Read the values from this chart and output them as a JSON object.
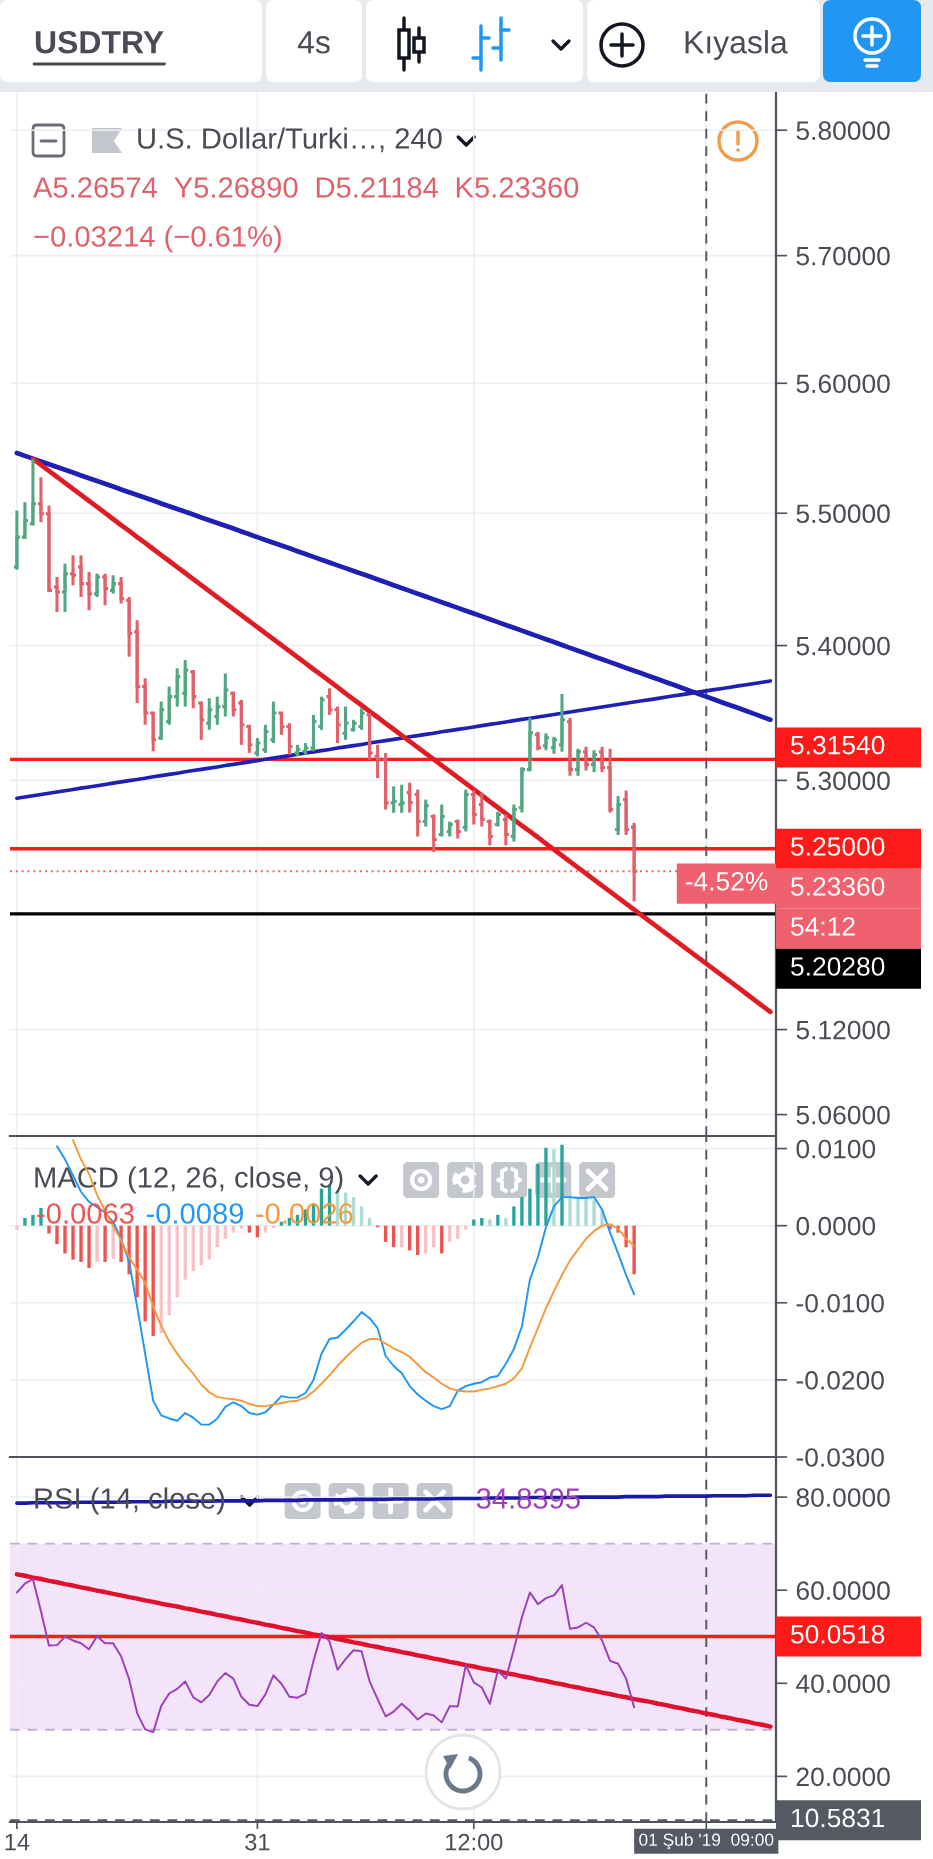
{
  "chart_data": [
    {
      "type": "candlestick",
      "title": "U.S. Dollar/Turki…, 240",
      "categories": [
        "14",
        null,
        null,
        null,
        null,
        null,
        null,
        null,
        null,
        null,
        null,
        null,
        null,
        null,
        null,
        null,
        null,
        null,
        null,
        null,
        null,
        null,
        null,
        null,
        null,
        null,
        null,
        null,
        null,
        null,
        "31",
        null,
        null,
        null,
        null,
        null,
        null,
        null,
        null,
        null,
        null,
        null,
        null,
        null,
        null,
        null,
        null,
        null,
        null,
        null,
        null,
        null,
        null,
        null,
        null,
        null,
        null,
        "12:00",
        null,
        null,
        null,
        null,
        null,
        null,
        null,
        null,
        null,
        null,
        null,
        null,
        null,
        null,
        null,
        null,
        null,
        null,
        null,
        null,
        null,
        null,
        null,
        null,
        null,
        null,
        null,
        null,
        "01 Şub '19  09:00",
        null,
        null,
        null,
        null,
        null,
        null,
        null,
        null
      ],
      "ohlc": [
        [
          5.4591,
          5.5021,
          5.4571,
          5.4818
        ],
        [
          5.4818,
          5.5084,
          5.4806,
          5.4945
        ],
        [
          5.492,
          5.5416,
          5.4907,
          5.5072
        ],
        [
          5.5072,
          5.5275,
          5.4932,
          5.4996
        ],
        [
          5.4996,
          5.5059,
          5.4402,
          5.4415
        ],
        [
          5.444,
          5.4516,
          5.4252,
          5.4402
        ],
        [
          5.4402,
          5.4617,
          5.4252,
          5.4541
        ],
        [
          5.4541,
          5.468,
          5.4453,
          5.4529
        ],
        [
          5.4591,
          5.468,
          5.4365,
          5.4466
        ],
        [
          5.4466,
          5.4554,
          5.4265,
          5.439
        ],
        [
          5.439,
          5.4541,
          5.4365,
          5.4516
        ],
        [
          5.4516,
          5.4541,
          5.4303,
          5.4428
        ],
        [
          5.4415,
          5.4529,
          5.439,
          5.4466
        ],
        [
          5.4466,
          5.4516,
          5.4315,
          5.4353
        ],
        [
          5.434,
          5.4365,
          5.3917,
          5.409
        ],
        [
          5.4103,
          5.419,
          5.3571,
          5.3694
        ],
        [
          5.3694,
          5.3755,
          5.341,
          5.3497
        ],
        [
          5.3497,
          5.3497,
          5.3214,
          5.3299
        ],
        [
          5.3312,
          5.3582,
          5.3299,
          5.3521
        ],
        [
          5.3435,
          5.3694,
          5.341,
          5.3619
        ],
        [
          5.3619,
          5.383,
          5.3545,
          5.3768
        ],
        [
          5.3644,
          5.3892,
          5.3545,
          5.3817
        ],
        [
          5.3805,
          5.3817,
          5.3533,
          5.3619
        ],
        [
          5.3571,
          5.3582,
          5.3299,
          5.3447
        ],
        [
          5.3422,
          5.3607,
          5.3373,
          5.3521
        ],
        [
          5.3472,
          5.3619,
          5.341,
          5.3545
        ],
        [
          5.3545,
          5.3792,
          5.3472,
          5.3669
        ],
        [
          5.3644,
          5.3656,
          5.3472,
          5.3521
        ],
        [
          5.3571,
          5.3595,
          5.3262,
          5.341
        ],
        [
          5.3398,
          5.341,
          5.3202,
          5.3262
        ],
        [
          5.3202,
          5.3312,
          5.3177,
          5.3275
        ],
        [
          5.3226,
          5.341,
          5.3202,
          5.3361
        ],
        [
          5.3299,
          5.3582,
          5.3275,
          5.3497
        ],
        [
          5.3497,
          5.3497,
          5.3336,
          5.3398
        ],
        [
          5.3398,
          5.3422,
          5.3189,
          5.325
        ],
        [
          5.3202,
          5.3262,
          5.3177,
          5.3226
        ],
        [
          5.3214,
          5.3275,
          5.3189,
          5.3238
        ],
        [
          5.3238,
          5.3484,
          5.3214,
          5.3435
        ],
        [
          5.3398,
          5.3619,
          5.3373,
          5.3595
        ],
        [
          5.3619,
          5.3681,
          5.3484,
          5.3521
        ],
        [
          5.3521,
          5.3545,
          5.3275,
          5.341
        ],
        [
          5.3348,
          5.3545,
          5.3299,
          5.3422
        ],
        [
          5.3373,
          5.3447,
          5.3361,
          5.3422
        ],
        [
          5.3398,
          5.3533,
          5.3373,
          5.3497
        ],
        [
          5.3484,
          5.3497,
          5.3152,
          5.3202
        ],
        [
          5.3177,
          5.3262,
          5.3017,
          5.3152
        ],
        [
          5.3152,
          5.3202,
          5.2786,
          5.2835
        ],
        [
          5.2835,
          5.2956,
          5.2762,
          5.2847
        ],
        [
          5.2823,
          5.2968,
          5.2762,
          5.2835
        ],
        [
          5.291,
          5.2983,
          5.2764,
          5.2837
        ],
        [
          5.2896,
          5.2932,
          5.2589,
          5.2698
        ],
        [
          5.2698,
          5.2859,
          5.2662,
          5.2815
        ],
        [
          5.2735,
          5.275,
          5.2476,
          5.2568
        ],
        [
          5.2604,
          5.2823,
          5.2589,
          5.2735
        ],
        [
          5.2626,
          5.2698,
          5.2589,
          5.2677
        ],
        [
          5.2698,
          5.2713,
          5.2575,
          5.2626
        ],
        [
          5.2655,
          5.2932,
          5.2626,
          5.2896
        ],
        [
          5.2896,
          5.2925,
          5.2677,
          5.275
        ],
        [
          5.2823,
          5.291,
          5.2662,
          5.2713
        ],
        [
          5.2698,
          5.2713,
          5.2524,
          5.2589
        ],
        [
          5.2677,
          5.2771,
          5.2662,
          5.275
        ],
        [
          5.2713,
          5.275,
          5.2524,
          5.2604
        ],
        [
          5.2589,
          5.2823,
          5.2553,
          5.2786
        ],
        [
          5.2801,
          5.3097,
          5.2764,
          5.3079
        ],
        [
          5.3079,
          5.3462,
          5.3072,
          5.3351
        ],
        [
          5.3336,
          5.3358,
          5.3222,
          5.324
        ],
        [
          5.3255,
          5.3347,
          5.3222,
          5.3314
        ],
        [
          5.324,
          5.3321,
          5.3196,
          5.3299
        ],
        [
          5.3262,
          5.3639,
          5.3211,
          5.3447
        ],
        [
          5.3432,
          5.3462,
          5.3034,
          5.3079
        ],
        [
          5.3079,
          5.3233,
          5.3034,
          5.3211
        ],
        [
          5.3211,
          5.3248,
          5.3072,
          5.3116
        ],
        [
          5.3116,
          5.3222,
          5.306,
          5.3189
        ],
        [
          5.3211,
          5.3248,
          5.306,
          5.3094
        ],
        [
          5.3094,
          5.3233,
          5.2764,
          5.2786
        ],
        [
          5.264,
          5.2885,
          5.26,
          5.2823
        ],
        [
          5.2859,
          5.2925,
          5.26,
          5.264
        ],
        [
          5.26574,
          5.2689,
          5.21184,
          5.2336
        ],
        null,
        null,
        null,
        null,
        null,
        null,
        null,
        null,
        null,
        null,
        null,
        null,
        null,
        null,
        null,
        null,
        null
      ],
      "colors": [
        "#52a681",
        "#52a681",
        "#52a681",
        "#e0606c",
        "#e0606c",
        "#e0606c",
        "#52a681",
        "#e0606c",
        "#e0606c",
        "#e0606c",
        "#52a681",
        "#e0606c",
        "#52a681",
        "#e0606c",
        "#e0606c",
        "#e0606c",
        "#e0606c",
        "#e0606c",
        "#52a681",
        "#52a681",
        "#52a681",
        "#52a681",
        "#e0606c",
        "#e0606c",
        "#52a681",
        "#52a681",
        "#52a681",
        "#e0606c",
        "#e0606c",
        "#e0606c",
        "#52a681",
        "#52a681",
        "#52a681",
        "#e0606c",
        "#e0606c",
        "#52a681",
        "#52a681",
        "#52a681",
        "#52a681",
        "#e0606c",
        "#e0606c",
        "#52a681",
        "#52a681",
        "#52a681",
        "#e0606c",
        "#e0606c",
        "#e0606c",
        "#52a681",
        "#52a681",
        "#e0606c",
        "#e0606c",
        "#52a681",
        "#e0606c",
        "#52a681",
        "#52a681",
        "#e0606c",
        "#52a681",
        "#e0606c",
        "#e0606c",
        "#e0606c",
        "#52a681",
        "#e0606c",
        "#52a681",
        "#52a681",
        "#52a681",
        "#e0606c",
        "#52a681",
        "#52a681",
        "#52a681",
        "#e0606c",
        "#52a681",
        "#e0606c",
        "#52a681",
        "#e0606c",
        "#e0606c",
        "#52a681",
        "#e0606c",
        "#e0606c",
        null,
        null,
        null,
        null,
        null,
        null,
        null,
        null,
        null,
        null,
        null,
        null,
        null,
        null,
        null,
        null,
        null
      ],
      "series": [
        {
          "type": "line",
          "color": "#1f1fb4",
          "values": [
            5.5461,
            5.5439,
            5.5418,
            5.5396,
            5.5375,
            5.5354,
            5.5332,
            5.5311,
            5.5289,
            5.5268,
            5.5247,
            5.5225,
            5.5204,
            5.5182,
            5.5161,
            5.5139,
            5.5118,
            5.5097,
            5.5075,
            5.5054,
            5.5032,
            5.5011,
            5.499,
            5.4968,
            5.4947,
            5.4925,
            5.4904,
            5.4883,
            5.4861,
            5.484,
            5.4818,
            5.4797,
            5.4775,
            5.4754,
            5.4733,
            5.4711,
            5.469,
            5.4668,
            5.4647,
            5.4626,
            5.4604,
            5.4583,
            5.4561,
            5.454,
            5.4519,
            5.4497,
            5.4476,
            5.4454,
            5.4433,
            5.4411,
            5.439,
            5.4369,
            5.4347,
            5.4326,
            5.4304,
            5.4283,
            5.4262,
            5.424,
            5.4219,
            5.4197,
            5.4176,
            5.4155,
            5.4133,
            5.4112,
            5.409,
            5.4069,
            5.4047,
            5.4026,
            5.4005,
            5.3983,
            5.3962,
            5.394,
            5.3919,
            5.3898,
            5.3876,
            5.3855,
            5.3833,
            5.3812,
            5.3791,
            5.3769,
            5.3748,
            5.3726,
            5.3705,
            5.3683,
            5.3662,
            5.3641,
            5.3619,
            5.3598,
            5.3576,
            5.3555,
            5.3534,
            5.3512,
            5.3491,
            5.3469,
            5.3448
          ]
        },
        {
          "type": "line",
          "color": "#1f1fb4",
          "values": [
            5.2869,
            5.2878,
            5.2887,
            5.2897,
            5.2906,
            5.2915,
            5.2924,
            5.2933,
            5.2943,
            5.2952,
            5.2961,
            5.297,
            5.298,
            5.2989,
            5.2998,
            5.3007,
            5.3016,
            5.3026,
            5.3035,
            5.3044,
            5.3053,
            5.3063,
            5.3072,
            5.3081,
            5.309,
            5.3099,
            5.3109,
            5.3118,
            5.3127,
            5.3136,
            5.3145,
            5.3155,
            5.3164,
            5.3173,
            5.3182,
            5.3192,
            5.3201,
            5.321,
            5.3219,
            5.3228,
            5.3238,
            5.3247,
            5.3256,
            5.3265,
            5.3275,
            5.3284,
            5.3293,
            5.3302,
            5.3311,
            5.3321,
            5.333,
            5.3339,
            5.3348,
            5.3358,
            5.3367,
            5.3376,
            5.3385,
            5.3394,
            5.3404,
            5.3413,
            5.3422,
            5.3431,
            5.3441,
            5.345,
            5.3459,
            5.3468,
            5.3477,
            5.3487,
            5.3496,
            5.3505,
            5.3514,
            5.3523,
            5.3533,
            5.3542,
            5.3551,
            5.356,
            5.357,
            5.3579,
            5.3588,
            5.3597,
            5.3606,
            5.3616,
            5.3625,
            5.3634,
            5.3643,
            5.3653,
            5.3662,
            5.3671,
            5.368,
            5.3689,
            5.3699,
            5.3708,
            5.3717,
            5.3726,
            5.3736
          ]
        },
        {
          "type": "line",
          "color": "#e01b24",
          "values": [
            null,
            null,
            5.5416,
            5.537,
            5.5324,
            5.5278,
            5.5232,
            5.5186,
            5.514,
            5.5094,
            5.5048,
            5.5002,
            5.4956,
            5.491,
            5.4865,
            5.4819,
            5.4774,
            5.4728,
            5.4682,
            5.4637,
            5.4591,
            5.4546,
            5.45,
            5.4455,
            5.441,
            5.4364,
            5.4319,
            5.4274,
            5.4229,
            5.4183,
            5.4138,
            5.4093,
            5.4048,
            5.4003,
            5.3958,
            5.3913,
            5.3868,
            5.3823,
            5.3779,
            5.3734,
            5.3689,
            5.3644,
            5.3599,
            5.3555,
            5.351,
            5.3466,
            5.3421,
            5.3377,
            5.3332,
            5.3288,
            5.3243,
            5.3199,
            5.3154,
            5.311,
            5.3066,
            5.3022,
            5.2978,
            5.2934,
            5.289,
            5.2845,
            5.2801,
            5.2757,
            5.2713,
            5.2669,
            5.2626,
            5.2582,
            5.2538,
            5.2494,
            5.2451,
            5.2407,
            5.2363,
            5.2319,
            5.2276,
            5.2232,
            5.2189,
            5.2146,
            5.2102,
            5.2059,
            5.2015,
            5.1972,
            5.1929,
            5.1885,
            5.1842,
            5.1799,
            5.1756,
            5.1713,
            5.167,
            5.1627,
            5.1584,
            5.1541,
            5.1498,
            5.1455,
            5.1412,
            5.1369,
            5.1326
          ]
        }
      ],
      "ylim": [
        5.045,
        5.83
      ],
      "log": true,
      "yticks": [
        {
          "value": 5.8,
          "label": "5.80000"
        },
        {
          "value": 5.7,
          "label": "5.70000"
        },
        {
          "value": 5.6,
          "label": "5.60000"
        },
        {
          "value": 5.5,
          "label": "5.50000"
        },
        {
          "value": 5.4,
          "label": "5.40000"
        },
        {
          "value": 5.3,
          "label": "5.30000"
        },
        {
          "value": 5.12,
          "label": "5.12000"
        },
        {
          "value": 5.06,
          "label": "5.06000"
        }
      ],
      "grid": true,
      "tick_labels": "y",
      "ref_lines": [
        {
          "axis": "y",
          "value": 5.3154,
          "label": "5.31540",
          "color": "#ff1a1a"
        },
        {
          "axis": "y",
          "value": 5.25,
          "label": "5.25000",
          "color": "#ff1a1a"
        },
        {
          "axis": "y",
          "value": 5.2336,
          "label": "5.23360",
          "color": "#f0616f",
          "line_style": "dotted"
        },
        {
          "axis": "y",
          "value": 5.2028,
          "label": "5.20280",
          "color": "#000000"
        },
        {
          "axis": "x",
          "value": "01 Şub '19  09:00",
          "color": "#555963",
          "line_style": "dashed"
        }
      ],
      "annotations": [
        "USDTRY",
        "4s",
        "Kıyasla",
        "A5.26574",
        "Y5.26890",
        "D5.21184",
        "K5.23360",
        "−0.03214 (−0.61%)",
        {
          "text": "-4.52%",
          "y": 5.2336
        },
        "54:12"
      ]
    },
    {
      "type": "line",
      "title": "MACD (12, 26, close, 9)",
      "categories": [
        "14",
        null,
        null,
        null,
        null,
        null,
        null,
        null,
        null,
        null,
        null,
        null,
        null,
        null,
        null,
        null,
        null,
        null,
        null,
        null,
        null,
        null,
        null,
        null,
        null,
        null,
        null,
        null,
        null,
        null,
        "31",
        null,
        null,
        null,
        null,
        null,
        null,
        null,
        null,
        null,
        null,
        null,
        null,
        null,
        null,
        null,
        null,
        null,
        null,
        null,
        null,
        null,
        null,
        null,
        null,
        null,
        null,
        "12:00",
        null,
        null,
        null,
        null,
        null,
        null,
        null,
        null,
        null,
        null,
        null,
        null,
        null,
        null,
        null,
        null,
        null,
        null,
        null,
        null,
        null,
        null,
        null,
        null,
        null,
        null,
        null,
        null,
        "01 Şub '19  09:00",
        null,
        null,
        null,
        null,
        null,
        null,
        null,
        null
      ],
      "series": [
        {
          "type": "bar",
          "values": [
            -0.0005,
            0.001,
            0.0014,
            0.0023,
            -0.001,
            -0.0024,
            -0.0036,
            -0.0044,
            -0.0047,
            -0.0055,
            -0.0047,
            -0.0047,
            -0.0043,
            -0.0047,
            -0.0063,
            -0.0093,
            -0.0124,
            -0.0143,
            -0.0139,
            -0.0116,
            -0.0093,
            -0.007,
            -0.0059,
            -0.0051,
            -0.0044,
            -0.0028,
            -0.0017,
            -0.0009,
            -0.0004,
            -0.0009,
            -0.0015,
            -0.0009,
            -0.0003,
            0.0005,
            0.001,
            0.0014,
            0.0021,
            0.0029,
            0.0048,
            0.0053,
            0.0046,
            0.0043,
            0.0037,
            0.0025,
            0.001,
            -0.0002,
            -0.0021,
            -0.0028,
            -0.0028,
            -0.0032,
            -0.0038,
            -0.0036,
            -0.0028,
            -0.0036,
            -0.0021,
            -0.0017,
            -0.0005,
            0.0008,
            0.001,
            0.0008,
            0.0014,
            0.001,
            0.0025,
            0.0037,
            0.0048,
            0.008,
            0.0101,
            0.0099,
            0.0105,
            0.0044,
            0.0038,
            0.0037,
            0.0033,
            0.0021,
            -0.0005,
            -0.0009,
            -0.0028,
            -0.0063,
            null,
            null,
            null,
            null,
            null,
            null,
            null,
            null,
            null,
            null,
            null,
            null,
            null,
            null,
            null,
            null,
            null
          ],
          "colors": [
            "#f9c0c6",
            "#26a69a",
            "#26a69a",
            "#26a69a",
            "#ef5350",
            "#ef5350",
            "#ef5350",
            "#ef5350",
            "#ef5350",
            "#ef5350",
            "#f9c0c6",
            "#ef5350",
            "#f9c0c6",
            "#ef5350",
            "#ef5350",
            "#ef5350",
            "#ef5350",
            "#ef5350",
            "#f9c0c6",
            "#f9c0c6",
            "#f9c0c6",
            "#f9c0c6",
            "#f9c0c6",
            "#f9c0c6",
            "#f9c0c6",
            "#f9c0c6",
            "#f9c0c6",
            "#f9c0c6",
            "#f9c0c6",
            "#ef5350",
            "#ef5350",
            "#f9c0c6",
            "#f9c0c6",
            "#26a69a",
            "#26a69a",
            "#26a69a",
            "#26a69a",
            "#26a69a",
            "#26a69a",
            "#26a69a",
            "#a8dcd4",
            "#a8dcd4",
            "#a8dcd4",
            "#a8dcd4",
            "#a8dcd4",
            "#ef5350",
            "#ef5350",
            "#ef5350",
            "#f9c0c6",
            "#ef5350",
            "#ef5350",
            "#f9c0c6",
            "#f9c0c6",
            "#ef5350",
            "#f9c0c6",
            "#f9c0c6",
            "#f9c0c6",
            "#26a69a",
            "#26a69a",
            "#a8dcd4",
            "#26a69a",
            "#a8dcd4",
            "#26a69a",
            "#26a69a",
            "#26a69a",
            "#26a69a",
            "#26a69a",
            "#a8dcd4",
            "#26a69a",
            "#a8dcd4",
            "#a8dcd4",
            "#a8dcd4",
            "#a8dcd4",
            "#a8dcd4",
            "#ef5350",
            "#ef5350",
            "#ef5350",
            "#ef5350",
            null,
            null,
            null,
            null,
            null,
            null,
            null,
            null,
            null,
            null,
            null,
            null,
            null,
            null,
            null,
            null,
            null
          ]
        },
        {
          "type": "line",
          "color": "#2196f3",
          "values": [
            null,
            null,
            null,
            null,
            null,
            0.0103,
            0.0086,
            0.0065,
            0.0044,
            0.0031,
            0.0024,
            0.0017,
            0.0005,
            -0.0017,
            -0.0047,
            -0.0105,
            -0.0166,
            -0.0227,
            -0.0246,
            -0.025,
            -0.0253,
            -0.0243,
            -0.0249,
            -0.0258,
            -0.0258,
            -0.025,
            -0.0235,
            -0.0229,
            -0.0234,
            -0.0243,
            -0.0245,
            -0.0242,
            -0.0232,
            -0.0221,
            -0.0223,
            -0.0223,
            -0.0217,
            -0.02,
            -0.0166,
            -0.0147,
            -0.0145,
            -0.0135,
            -0.0124,
            -0.0112,
            -0.012,
            -0.0133,
            -0.0169,
            -0.0182,
            -0.0191,
            -0.0208,
            -0.0219,
            -0.0227,
            -0.0234,
            -0.0238,
            -0.0234,
            -0.0214,
            -0.0208,
            -0.0205,
            -0.0203,
            -0.0197,
            -0.0195,
            -0.0179,
            -0.016,
            -0.0131,
            -0.007,
            -0.0041,
            -0.0002,
            0.0025,
            0.0037,
            0.0037,
            0.0036,
            0.0036,
            0.0037,
            0.0021,
            -0.0009,
            -0.0036,
            -0.0064,
            -0.0089,
            null,
            null,
            null,
            null,
            null,
            null,
            null,
            null,
            null,
            null,
            null,
            null,
            null,
            null,
            null,
            null,
            null
          ]
        },
        {
          "type": "line",
          "color": "#f59a3c",
          "values": [
            null,
            null,
            null,
            null,
            null,
            null,
            null,
            0.0111,
            0.0086,
            0.0067,
            0.004,
            0.0019,
            0,
            -0.0019,
            -0.0041,
            -0.0057,
            -0.0074,
            -0.0105,
            -0.013,
            -0.015,
            -0.0166,
            -0.018,
            -0.0192,
            -0.0206,
            -0.0216,
            -0.0222,
            -0.0224,
            -0.0225,
            -0.0227,
            -0.0231,
            -0.0234,
            -0.0234,
            -0.0232,
            -0.023,
            -0.0228,
            -0.0227,
            -0.0223,
            -0.0215,
            -0.0205,
            -0.0194,
            -0.0182,
            -0.0171,
            -0.0161,
            -0.0152,
            -0.0147,
            -0.0147,
            -0.0153,
            -0.0159,
            -0.0164,
            -0.017,
            -0.018,
            -0.019,
            -0.0197,
            -0.0205,
            -0.0211,
            -0.0214,
            -0.0215,
            -0.0215,
            -0.0213,
            -0.0211,
            -0.0208,
            -0.0205,
            -0.0198,
            -0.0185,
            -0.0158,
            -0.0133,
            -0.0107,
            -0.0085,
            -0.0064,
            -0.0045,
            -0.0031,
            -0.0017,
            -0.0007,
            0,
            0.0002,
            -0.0004,
            -0.0017,
            -0.0026,
            null,
            null,
            null,
            null,
            null,
            null,
            null,
            null,
            null,
            null,
            null,
            null,
            null,
            null,
            null,
            null,
            null
          ]
        }
      ],
      "ylim": [
        -0.03,
        0.0115
      ],
      "yticks": [
        {
          "value": 0.01,
          "label": "0.0100"
        },
        {
          "value": 0,
          "label": "0.0000"
        },
        {
          "value": -0.01,
          "label": "-0.0100"
        },
        {
          "value": -0.02,
          "label": "-0.0200"
        },
        {
          "value": -0.03,
          "label": "-0.0300"
        }
      ],
      "grid": true,
      "tick_labels": "y",
      "ref_lines": [
        {
          "axis": "x",
          "value": "01 Şub '19  09:00",
          "color": "#555963",
          "line_style": "dashed"
        }
      ],
      "annotations": [
        "-0.0063",
        "-0.0089",
        "-0.0026"
      ]
    },
    {
      "type": "line",
      "title": "RSI (14, close)",
      "categories": [
        "14",
        null,
        null,
        null,
        null,
        null,
        null,
        null,
        null,
        null,
        null,
        null,
        null,
        null,
        null,
        null,
        null,
        null,
        null,
        null,
        null,
        null,
        null,
        null,
        null,
        null,
        null,
        null,
        null,
        null,
        "31",
        null,
        null,
        null,
        null,
        null,
        null,
        null,
        null,
        null,
        null,
        null,
        null,
        null,
        null,
        null,
        null,
        null,
        null,
        null,
        null,
        null,
        null,
        null,
        null,
        null,
        null,
        "12:00",
        null,
        null,
        null,
        null,
        null,
        null,
        null,
        null,
        null,
        null,
        null,
        null,
        null,
        null,
        null,
        null,
        null,
        null,
        null,
        null,
        null,
        null,
        null,
        null,
        null,
        null,
        null,
        null,
        "01 Şub '19  09:00",
        null,
        null,
        null,
        null,
        null,
        null,
        null,
        null
      ],
      "series": [
        {
          "type": "line",
          "color": "#9c3fb8",
          "values": [
            59.5,
            61.4,
            62.4,
            55.5,
            48.1,
            48.2,
            50.0,
            49.2,
            48.6,
            47.3,
            50.1,
            48.6,
            48.6,
            45.8,
            40.9,
            33.6,
            30.1,
            29.5,
            35.1,
            37.8,
            38.8,
            40.4,
            37.0,
            35.9,
            37.5,
            40.4,
            42.2,
            41.0,
            37.1,
            35.4,
            35.1,
            37.6,
            41.7,
            39.9,
            37.1,
            36.9,
            37.8,
            44.8,
            50.8,
            49.0,
            42.9,
            45.2,
            47.1,
            46.9,
            40.4,
            36.6,
            32.9,
            33.9,
            35.6,
            34.1,
            32.2,
            33.5,
            33.1,
            31.6,
            35.1,
            35.0,
            43.9,
            40.2,
            39.1,
            35.6,
            42.7,
            41.0,
            47.3,
            54.2,
            59.5,
            57.0,
            58.3,
            58.9,
            61.1,
            51.7,
            52.0,
            53.0,
            52.0,
            49.2,
            44.8,
            44.2,
            41.0,
            34.8395,
            null,
            null,
            null,
            null,
            null,
            null,
            null,
            null,
            null,
            null,
            null,
            null,
            null,
            null,
            null,
            null,
            null
          ]
        },
        {
          "type": "line",
          "color": "#e0112b",
          "values": [
            63.4,
            63.1,
            62.7,
            62.4,
            62.0,
            61.7,
            61.3,
            61.0,
            60.6,
            60.3,
            59.9,
            59.6,
            59.2,
            58.9,
            58.5,
            58.2,
            57.8,
            57.5,
            57.1,
            56.8,
            56.5,
            56.1,
            55.8,
            55.4,
            55.1,
            54.7,
            54.4,
            54.0,
            53.7,
            53.3,
            53.0,
            52.6,
            52.3,
            51.9,
            51.6,
            51.2,
            50.9,
            50.5,
            50.2,
            49.9,
            49.5,
            49.2,
            48.8,
            48.5,
            48.1,
            47.8,
            47.4,
            47.1,
            46.7,
            46.4,
            46.0,
            45.7,
            45.3,
            45.0,
            44.6,
            44.3,
            43.9,
            43.6,
            43.2,
            42.9,
            42.6,
            42.2,
            41.9,
            41.5,
            41.2,
            40.8,
            40.5,
            40.1,
            39.8,
            39.4,
            39.1,
            38.7,
            38.4,
            38.0,
            37.7,
            37.3,
            37.0,
            36.6,
            36.3,
            36.0,
            35.6,
            35.3,
            34.9,
            34.6,
            34.2,
            33.9,
            33.5,
            33.2,
            32.8,
            32.5,
            32.1,
            31.8,
            31.4,
            31.1,
            30.7
          ]
        },
        {
          "type": "line",
          "color": "#1a1aa6",
          "values": [
            78.7,
            78.7,
            78.8,
            78.8,
            78.8,
            78.8,
            78.8,
            78.8,
            78.9,
            78.9,
            78.9,
            78.9,
            78.9,
            78.9,
            79.0,
            79.0,
            79.0,
            79.0,
            79.0,
            79.1,
            79.1,
            79.1,
            79.1,
            79.1,
            79.1,
            79.2,
            79.2,
            79.2,
            79.2,
            79.2,
            79.2,
            79.3,
            79.3,
            79.3,
            79.3,
            79.3,
            79.4,
            79.4,
            79.4,
            79.4,
            79.4,
            79.4,
            79.5,
            79.5,
            79.5,
            79.5,
            79.5,
            79.6,
            79.6,
            79.6,
            79.6,
            79.6,
            79.6,
            79.7,
            79.7,
            79.7,
            79.7,
            79.7,
            79.7,
            79.8,
            79.8,
            79.8,
            79.8,
            79.8,
            79.9,
            79.9,
            79.9,
            79.9,
            79.9,
            79.9,
            80.0,
            80.0,
            80.0,
            80.0,
            80.0,
            80.0,
            80.1,
            80.1,
            80.1,
            80.1,
            80.1,
            80.2,
            80.2,
            80.2,
            80.2,
            80.2,
            80.2,
            80.3,
            80.3,
            80.3,
            80.3,
            80.3,
            80.4,
            80.4,
            80.4
          ]
        }
      ],
      "ylim": [
        10.2,
        88.4
      ],
      "yticks": [
        {
          "value": 80,
          "label": "80.0000"
        },
        {
          "value": 60,
          "label": "60.0000"
        },
        {
          "value": 40,
          "label": "40.0000"
        },
        {
          "value": 20,
          "label": "20.0000"
        }
      ],
      "grid": true,
      "bands": [
        {
          "axis": "y",
          "from": 30,
          "to": 70,
          "color": "#f3e4fb"
        }
      ],
      "ref_lines": [
        {
          "axis": "y",
          "value": 70,
          "color": "#c4aed2",
          "line_style": "dashed"
        },
        {
          "axis": "y",
          "value": 30,
          "color": "#c4aed2",
          "line_style": "dashed"
        },
        {
          "axis": "y",
          "value": 50.0518,
          "label": "50.0518",
          "color": "#ff1a1a"
        },
        {
          "axis": "y",
          "value": 10.5831,
          "label": "10.5831",
          "color": "#555963",
          "line_style": "dashed"
        },
        {
          "axis": "x",
          "value": "01 Şub '19  09:00",
          "color": "#555963",
          "line_style": "dashed"
        }
      ],
      "annotations": [
        "34.8395"
      ]
    }
  ]
}
